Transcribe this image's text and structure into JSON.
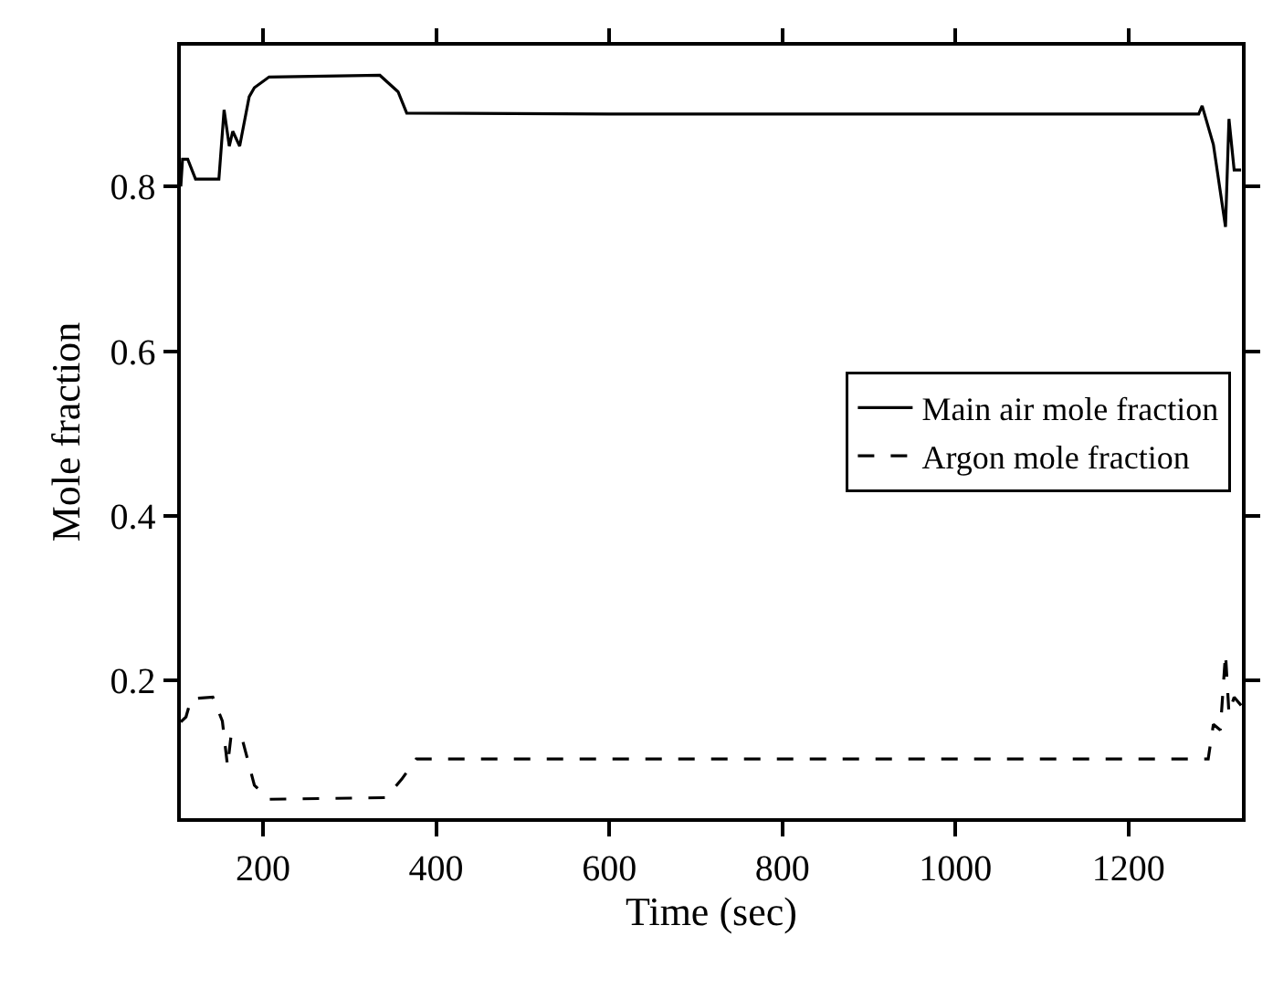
{
  "chart_data": {
    "type": "line",
    "xlabel": "Time (sec)",
    "ylabel": "Mole fraction",
    "xlim": [
      105,
      1331
    ],
    "ylim": [
      0.033,
      0.971
    ],
    "xticks": [
      200,
      400,
      600,
      800,
      1000,
      1200
    ],
    "yticks": [
      0.2,
      0.4,
      0.6,
      0.8
    ],
    "legend": "right",
    "marker": "none",
    "series": [
      {
        "name": "Main air mole fraction",
        "color": "#000000",
        "line_style": "solid",
        "x": [
          105,
          107,
          113,
          122,
          149,
          155,
          161,
          165,
          173,
          184,
          190,
          207,
          335,
          356,
          366,
          600,
          1000,
          1281,
          1285,
          1298,
          1312,
          1316,
          1322,
          1330
        ],
        "values": [
          0.8,
          0.833,
          0.833,
          0.809,
          0.809,
          0.893,
          0.849,
          0.867,
          0.849,
          0.909,
          0.92,
          0.933,
          0.935,
          0.915,
          0.889,
          0.888,
          0.888,
          0.888,
          0.898,
          0.851,
          0.751,
          0.882,
          0.82,
          0.82
        ]
      },
      {
        "name": "Argon mole fraction",
        "color": "#000000",
        "line_style": "dashed",
        "x": [
          105,
          111,
          117,
          142,
          153,
          159,
          163,
          176,
          180,
          190,
          207,
          342,
          360,
          377,
          600,
          1000,
          1292,
          1298,
          1306,
          1312,
          1316,
          1322,
          1330
        ],
        "values": [
          0.15,
          0.156,
          0.178,
          0.18,
          0.151,
          0.096,
          0.133,
          0.129,
          0.113,
          0.073,
          0.056,
          0.058,
          0.08,
          0.105,
          0.105,
          0.105,
          0.105,
          0.147,
          0.14,
          0.233,
          0.16,
          0.18,
          0.17
        ]
      }
    ]
  }
}
